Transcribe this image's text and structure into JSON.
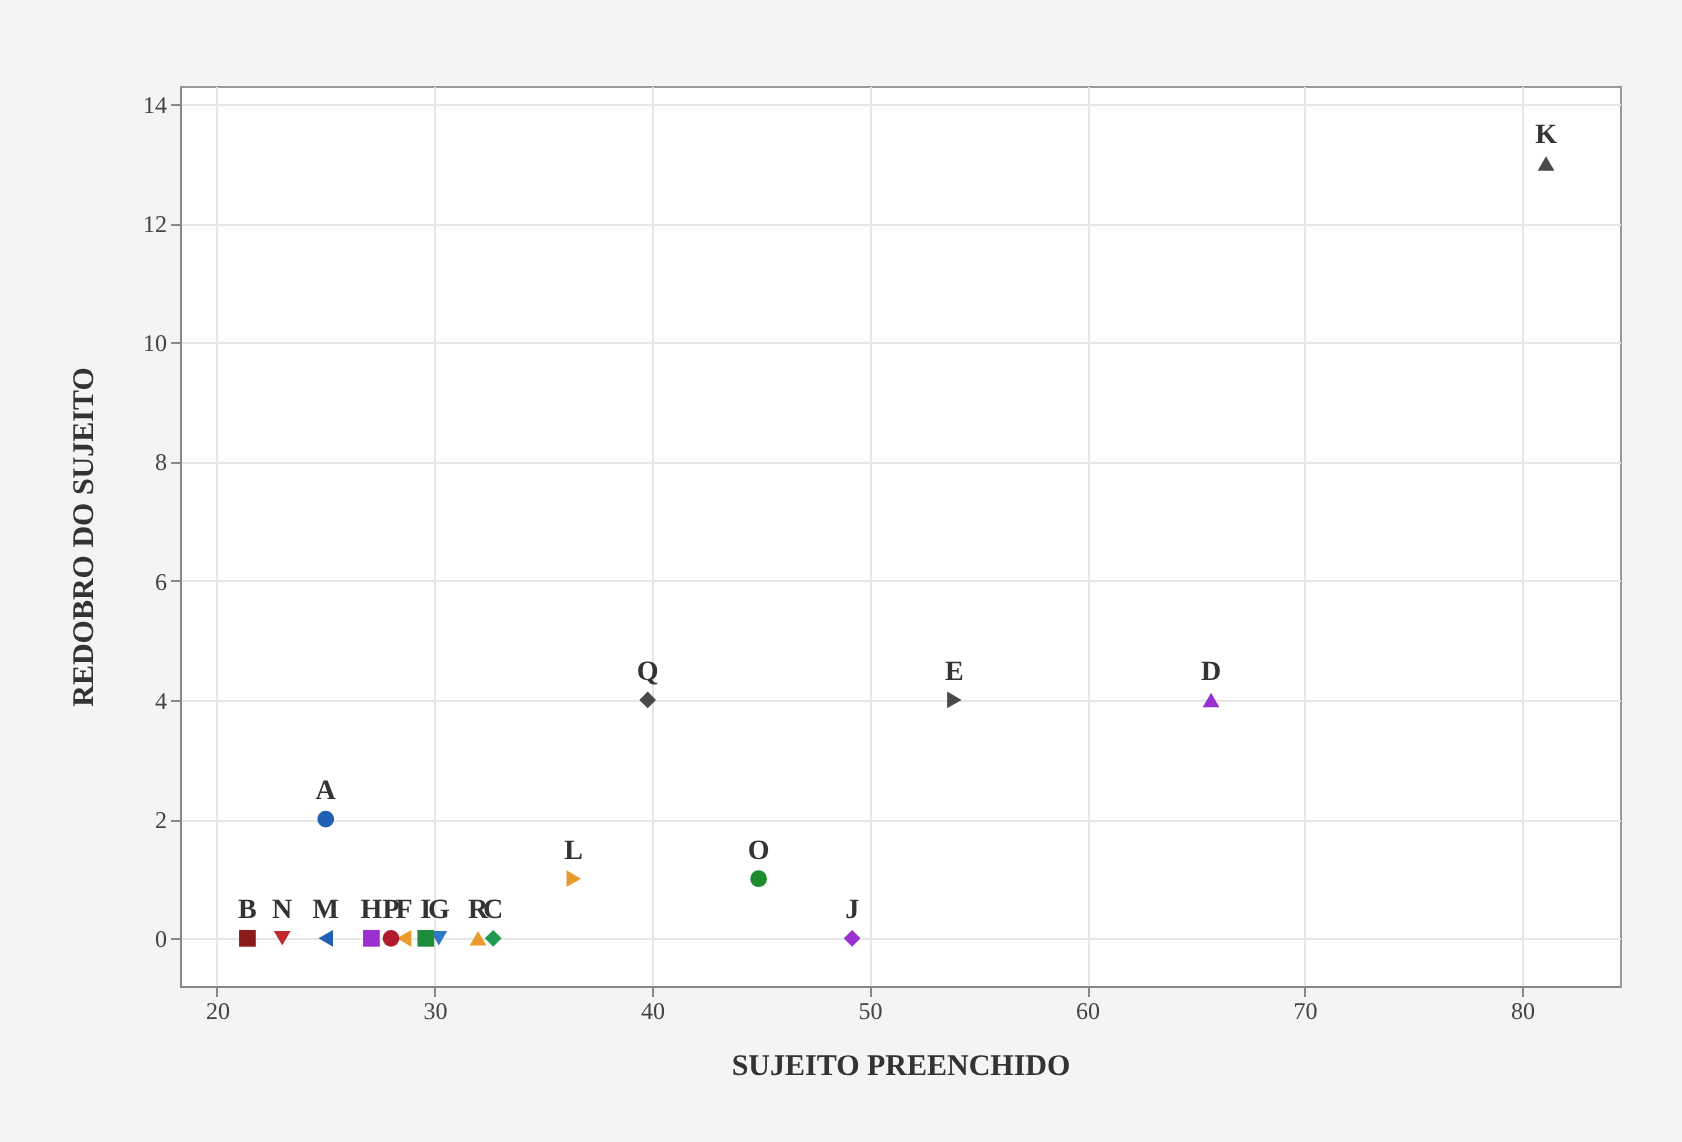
{
  "chart_data": {
    "type": "scatter",
    "xlabel": "SUJEITO PREENCHIDO",
    "ylabel": "REDOBRO DO SUJEITO",
    "xlim": [
      18.3,
      84.5
    ],
    "ylim": [
      -0.8,
      14.3
    ],
    "xticks": [
      20,
      30,
      40,
      50,
      60,
      70,
      80
    ],
    "yticks": [
      0,
      2,
      4,
      6,
      8,
      10,
      12,
      14
    ],
    "grid": true,
    "series": [
      {
        "name": "A",
        "color": "#1f5fb4",
        "marker": "circle",
        "x": [
          25.0
        ],
        "values": [
          2
        ]
      },
      {
        "name": "B",
        "color": "#8b1a1a",
        "marker": "square",
        "x": [
          21.4
        ],
        "values": [
          0
        ]
      },
      {
        "name": "C",
        "color": "#1e9a50",
        "marker": "diamond",
        "x": [
          32.7
        ],
        "values": [
          0
        ]
      },
      {
        "name": "D",
        "color": "#9b30d0",
        "marker": "triangle-up",
        "x": [
          65.7
        ],
        "values": [
          4
        ]
      },
      {
        "name": "E",
        "color": "#4a4a4a",
        "marker": "triangle-right",
        "x": [
          53.9
        ],
        "values": [
          4
        ]
      },
      {
        "name": "F",
        "color": "#e89a2c",
        "marker": "triangle-left",
        "x": [
          28.6
        ],
        "values": [
          0
        ]
      },
      {
        "name": "G",
        "color": "#2e78c8",
        "marker": "triangle-down",
        "x": [
          30.2
        ],
        "values": [
          0
        ]
      },
      {
        "name": "H",
        "color": "#9b30d0",
        "marker": "square",
        "x": [
          27.1
        ],
        "values": [
          0
        ]
      },
      {
        "name": "I",
        "color": "#1e8c3a",
        "marker": "square",
        "x": [
          29.6
        ],
        "values": [
          0
        ]
      },
      {
        "name": "J",
        "color": "#9b30d0",
        "marker": "diamond",
        "x": [
          49.2
        ],
        "values": [
          0
        ]
      },
      {
        "name": "K",
        "color": "#4a4a4a",
        "marker": "triangle-up",
        "x": [
          81.1
        ],
        "values": [
          13
        ]
      },
      {
        "name": "L",
        "color": "#e89a2c",
        "marker": "triangle-right",
        "x": [
          36.4
        ],
        "values": [
          1
        ]
      },
      {
        "name": "M",
        "color": "#1f5fb4",
        "marker": "triangle-left",
        "x": [
          25.0
        ],
        "values": [
          0
        ]
      },
      {
        "name": "N",
        "color": "#c0282d",
        "marker": "triangle-down",
        "x": [
          23.0
        ],
        "values": [
          0
        ]
      },
      {
        "name": "O",
        "color": "#1e8a2e",
        "marker": "circle",
        "x": [
          44.9
        ],
        "values": [
          1
        ]
      },
      {
        "name": "P",
        "color": "#b01c2e",
        "marker": "circle",
        "x": [
          28.0
        ],
        "values": [
          0
        ]
      },
      {
        "name": "Q",
        "color": "#4a4a4a",
        "marker": "diamond",
        "x": [
          39.8
        ],
        "values": [
          4
        ]
      },
      {
        "name": "R",
        "color": "#e89a2c",
        "marker": "triangle-up",
        "x": [
          32.0
        ],
        "values": [
          0
        ]
      }
    ]
  }
}
